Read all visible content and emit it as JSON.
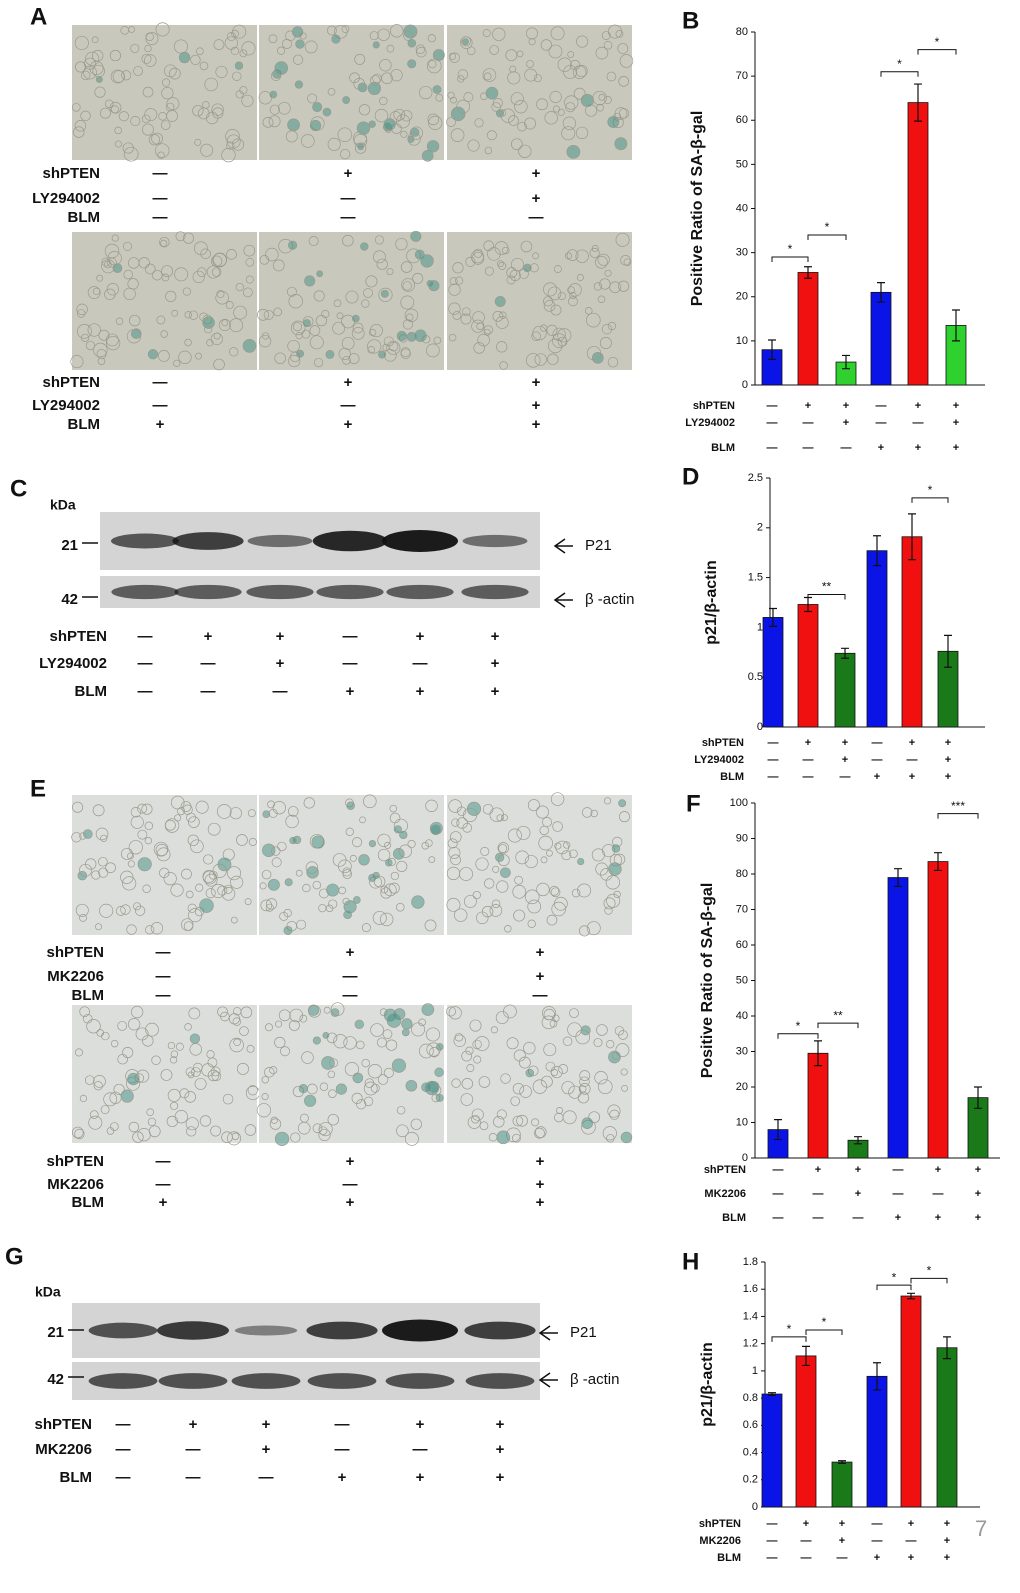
{
  "panel_a": {
    "letter": "A",
    "groups": [
      {
        "conditions": [
          {
            "name": "shPTEN",
            "signs": [
              "—",
              "+",
              "+"
            ]
          },
          {
            "name": "LY294002",
            "signs": [
              "—",
              "—",
              "+"
            ]
          },
          {
            "name": "BLM",
            "signs": [
              "—",
              "—",
              "—"
            ]
          }
        ]
      },
      {
        "conditions": [
          {
            "name": "shPTEN",
            "signs": [
              "—",
              "+",
              "+"
            ]
          },
          {
            "name": "LY294002",
            "signs": [
              "—",
              "—",
              "+"
            ]
          },
          {
            "name": "BLM",
            "signs": [
              "+",
              "+",
              "+"
            ]
          }
        ]
      }
    ]
  },
  "panel_c": {
    "letter": "C",
    "unit": "kDa",
    "markers": [
      21,
      42
    ],
    "bands": [
      "P21",
      "β -actin"
    ],
    "conditions": [
      {
        "name": "shPTEN",
        "signs": [
          "—",
          "+",
          "+",
          "—",
          "+",
          "+"
        ]
      },
      {
        "name": "LY294002",
        "signs": [
          "—",
          "—",
          "+",
          "—",
          "—",
          "+"
        ]
      },
      {
        "name": "BLM",
        "signs": [
          "—",
          "—",
          "—",
          "+",
          "+",
          "+"
        ]
      }
    ]
  },
  "panel_e": {
    "letter": "E",
    "groups": [
      {
        "conditions": [
          {
            "name": "shPTEN",
            "signs": [
              "—",
              "+",
              "+"
            ]
          },
          {
            "name": "MK2206",
            "signs": [
              "—",
              "—",
              "+"
            ]
          },
          {
            "name": "BLM",
            "signs": [
              "—",
              "—",
              "—"
            ]
          }
        ]
      },
      {
        "conditions": [
          {
            "name": "shPTEN",
            "signs": [
              "—",
              "+",
              "+"
            ]
          },
          {
            "name": "MK2206",
            "signs": [
              "—",
              "—",
              "+"
            ]
          },
          {
            "name": "BLM",
            "signs": [
              "+",
              "+",
              "+"
            ]
          }
        ]
      }
    ]
  },
  "panel_g": {
    "letter": "G",
    "unit": "kDa",
    "markers": [
      21,
      42
    ],
    "bands": [
      "P21",
      "β -actin"
    ],
    "conditions": [
      {
        "name": "shPTEN",
        "signs": [
          "—",
          "+",
          "+",
          "—",
          "+",
          "+"
        ]
      },
      {
        "name": "MK2206",
        "signs": [
          "—",
          "—",
          "+",
          "—",
          "—",
          "+"
        ]
      },
      {
        "name": "BLM",
        "signs": [
          "—",
          "—",
          "—",
          "+",
          "+",
          "+"
        ]
      }
    ]
  },
  "page_number": "7",
  "chart_data": [
    {
      "type": "bar",
      "panel": "B",
      "y_label": "Positive Ratio of SA-β-gal",
      "values": [
        8,
        25.5,
        5.2,
        21,
        64,
        13.5
      ],
      "errors": [
        2.2,
        1.3,
        1.5,
        2.2,
        4.2,
        3.5
      ],
      "colors": [
        "#0a14e6",
        "#f01010",
        "#2ed12e",
        "#0a14e6",
        "#f01010",
        "#2ed12e"
      ],
      "ylim": [
        0,
        80
      ],
      "yticks": [
        0,
        10,
        20,
        30,
        40,
        50,
        60,
        70,
        80
      ],
      "brackets": [
        {
          "between": [
            0,
            1
          ],
          "y": 29,
          "label": "*"
        },
        {
          "between": [
            1,
            2
          ],
          "y": 34,
          "label": "*"
        },
        {
          "between": [
            3,
            4
          ],
          "y": 71,
          "label": "*"
        },
        {
          "between": [
            4,
            5
          ],
          "y": 76,
          "label": "*"
        }
      ],
      "conditions": [
        {
          "name": "shPTEN",
          "signs": [
            "—",
            "+",
            "+",
            "—",
            "+",
            "+"
          ]
        },
        {
          "name": "LY294002",
          "signs": [
            "—",
            "—",
            "+",
            "—",
            "—",
            "+"
          ]
        },
        {
          "name": "BLM",
          "signs": [
            "—",
            "—",
            "—",
            "+",
            "+",
            "+"
          ]
        }
      ]
    },
    {
      "type": "bar",
      "panel": "D",
      "y_label": "p21/β-actin",
      "values": [
        1.1,
        1.23,
        0.74,
        1.77,
        1.91,
        0.76
      ],
      "errors": [
        0.09,
        0.07,
        0.05,
        0.15,
        0.23,
        0.16
      ],
      "colors": [
        "#0a14e6",
        "#f01010",
        "#1a7a1a",
        "#0a14e6",
        "#f01010",
        "#1a7a1a"
      ],
      "ylim": [
        0,
        2.5
      ],
      "yticks": [
        0,
        0.5,
        1,
        1.5,
        2,
        2.5
      ],
      "brackets": [
        {
          "between": [
            1,
            2
          ],
          "y": 1.33,
          "label": "**"
        },
        {
          "between": [
            4,
            5
          ],
          "y": 2.3,
          "label": "*"
        }
      ],
      "conditions": [
        {
          "name": "shPTEN",
          "signs": [
            "—",
            "+",
            "+",
            "—",
            "+",
            "+"
          ]
        },
        {
          "name": "LY294002",
          "signs": [
            "—",
            "—",
            "+",
            "—",
            "—",
            "+"
          ]
        },
        {
          "name": "BLM",
          "signs": [
            "—",
            "—",
            "—",
            "+",
            "+",
            "+"
          ]
        }
      ]
    },
    {
      "type": "bar",
      "panel": "F",
      "y_label": "Positive Ratio of SA-β-gal",
      "values": [
        8,
        29.5,
        5,
        79,
        83.5,
        17
      ],
      "errors": [
        2.8,
        3.5,
        1,
        2.5,
        2.5,
        3
      ],
      "colors": [
        "#0a14e6",
        "#f01010",
        "#1a7a1a",
        "#0a14e6",
        "#f01010",
        "#1a7a1a"
      ],
      "ylim": [
        0,
        100
      ],
      "yticks": [
        0,
        10,
        20,
        30,
        40,
        50,
        60,
        70,
        80,
        90,
        100
      ],
      "brackets": [
        {
          "between": [
            0,
            1
          ],
          "y": 35,
          "label": "*"
        },
        {
          "between": [
            1,
            2
          ],
          "y": 38,
          "label": "**"
        },
        {
          "between": [
            4,
            5
          ],
          "y": 97,
          "label": "***"
        }
      ],
      "conditions": [
        {
          "name": "shPTEN",
          "signs": [
            "—",
            "+",
            "+",
            "—",
            "+",
            "+"
          ]
        },
        {
          "name": "MK2206",
          "signs": [
            "—",
            "—",
            "+",
            "—",
            "—",
            "+"
          ]
        },
        {
          "name": "BLM",
          "signs": [
            "—",
            "—",
            "—",
            "+",
            "+",
            "+"
          ]
        }
      ]
    },
    {
      "type": "bar",
      "panel": "H",
      "y_label": "p21/β-actin",
      "values": [
        0.83,
        1.11,
        0.33,
        0.96,
        1.55,
        1.17
      ],
      "errors": [
        0.01,
        0.07,
        0.01,
        0.1,
        0.02,
        0.08
      ],
      "colors": [
        "#0a14e6",
        "#f01010",
        "#1a7a1a",
        "#0a14e6",
        "#f01010",
        "#1a7a1a"
      ],
      "ylim": [
        0,
        1.8
      ],
      "yticks": [
        0,
        0.2,
        0.4,
        0.6,
        0.8,
        1,
        1.2,
        1.4,
        1.6,
        1.8
      ],
      "brackets": [
        {
          "between": [
            0,
            1
          ],
          "y": 1.25,
          "label": "*"
        },
        {
          "between": [
            1,
            2
          ],
          "y": 1.3,
          "label": "*"
        },
        {
          "between": [
            3,
            4
          ],
          "y": 1.63,
          "label": "*"
        },
        {
          "between": [
            4,
            5
          ],
          "y": 1.68,
          "label": "*"
        }
      ],
      "conditions": [
        {
          "name": "shPTEN",
          "signs": [
            "—",
            "+",
            "+",
            "—",
            "+",
            "+"
          ]
        },
        {
          "name": "MK2206",
          "signs": [
            "—",
            "—",
            "+",
            "—",
            "—",
            "+"
          ]
        },
        {
          "name": "BLM",
          "signs": [
            "—",
            "—",
            "—",
            "+",
            "+",
            "+"
          ]
        }
      ]
    }
  ]
}
